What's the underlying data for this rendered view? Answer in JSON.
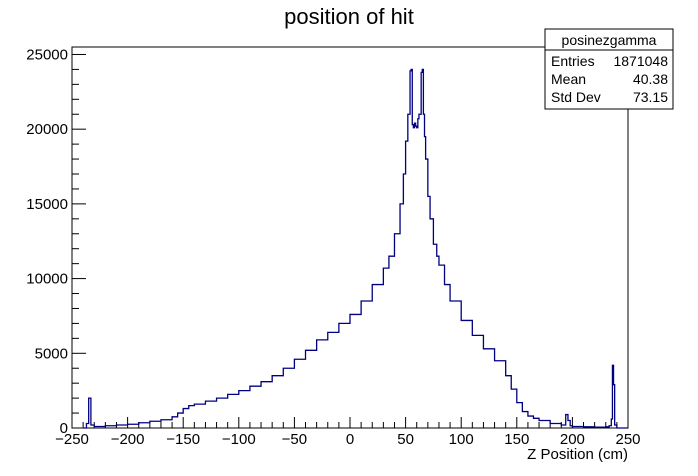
{
  "chart_data": {
    "type": "histogram",
    "title": "position of hit",
    "xlabel": "Z Position (cm)",
    "ylabel": "",
    "xlim": [
      -250,
      250
    ],
    "ylim": [
      0,
      25500
    ],
    "x_ticks": [
      -250,
      -200,
      -150,
      -100,
      -50,
      0,
      50,
      100,
      150,
      200,
      250
    ],
    "x_tick_labels": [
      "−250",
      "−200",
      "−150",
      "−100",
      "−50",
      "0",
      "50",
      "100",
      "150",
      "200",
      "250"
    ],
    "y_ticks": [
      0,
      5000,
      10000,
      15000,
      20000,
      25000
    ],
    "y_tick_labels": [
      "0",
      "5000",
      "10000",
      "15000",
      "20000",
      "25000"
    ],
    "grid": false,
    "line_color": "#000080",
    "series": [
      {
        "name": "posinezgamma",
        "x": [
          -240,
          -237,
          -235,
          -233,
          -230,
          -220,
          -210,
          -200,
          -190,
          -180,
          -170,
          -160,
          -155,
          -150,
          -145,
          -140,
          -130,
          -120,
          -110,
          -100,
          -90,
          -80,
          -70,
          -60,
          -50,
          -40,
          -30,
          -20,
          -10,
          0,
          10,
          20,
          30,
          35,
          40,
          45,
          48,
          50,
          52,
          54,
          55,
          56,
          57,
          58,
          59,
          60,
          61,
          62,
          64,
          65,
          66,
          67,
          68,
          70,
          72,
          75,
          78,
          80,
          85,
          90,
          100,
          110,
          120,
          130,
          140,
          145,
          150,
          155,
          160,
          165,
          170,
          180,
          190,
          194,
          196,
          198,
          200,
          210,
          220,
          230,
          233,
          235,
          236,
          237,
          238,
          240
        ],
        "y": [
          0,
          300,
          2000,
          200,
          100,
          150,
          200,
          250,
          350,
          450,
          550,
          750,
          1000,
          1300,
          1500,
          1600,
          1800,
          2000,
          2250,
          2500,
          2800,
          3100,
          3500,
          4000,
          4600,
          5200,
          5900,
          6400,
          7000,
          7600,
          8500,
          9600,
          10700,
          11500,
          13000,
          15000,
          17000,
          19200,
          21000,
          23900,
          24000,
          20300,
          20100,
          20400,
          20200,
          20100,
          20700,
          21000,
          23800,
          24000,
          21000,
          19500,
          18000,
          15500,
          14000,
          12300,
          11500,
          10900,
          9600,
          8500,
          7200,
          6200,
          5300,
          4500,
          3500,
          2600,
          1700,
          1100,
          800,
          650,
          500,
          300,
          200,
          900,
          500,
          150,
          100,
          80,
          60,
          80,
          150,
          600,
          4200,
          2900,
          200,
          0
        ]
      }
    ],
    "stats_box": {
      "title": "posinezgamma",
      "rows": [
        {
          "label": "Entries",
          "value": "1871048"
        },
        {
          "label": "Mean",
          "value": "40.38"
        },
        {
          "label": "Std Dev",
          "value": "73.15"
        }
      ]
    }
  }
}
